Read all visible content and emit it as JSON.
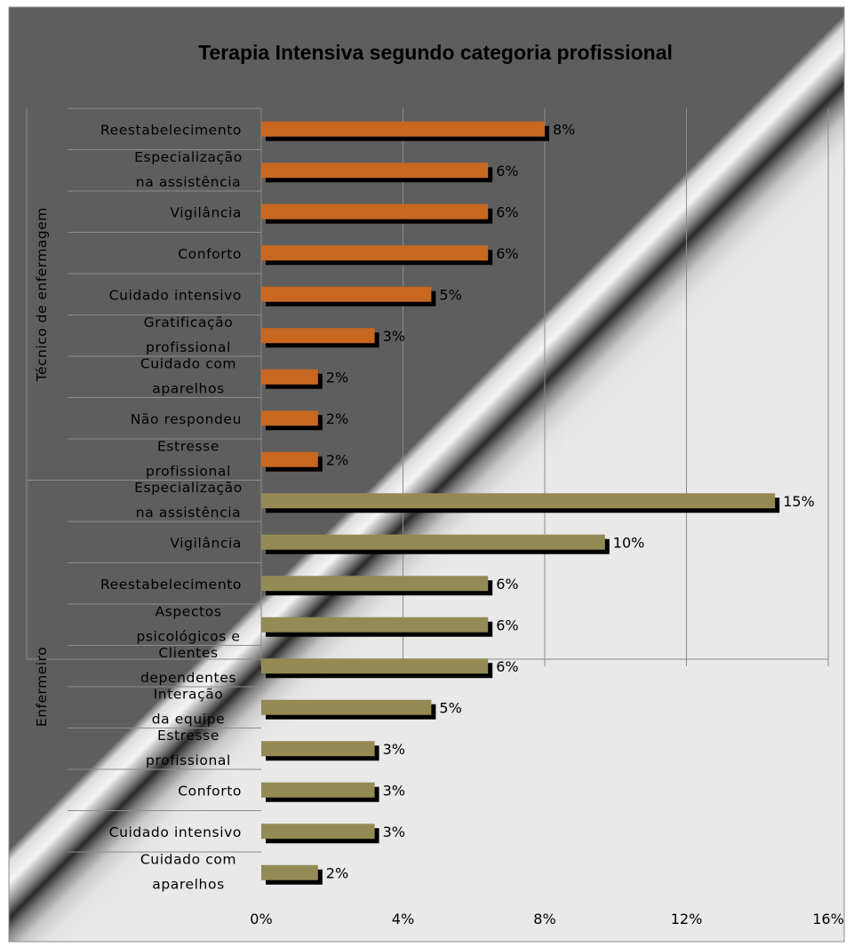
{
  "chart_data": {
    "type": "bar",
    "orientation": "horizontal",
    "title": "Terapia Intensiva segundo categoria profissional",
    "x_ticks": [
      "0%",
      "4%",
      "8%",
      "12%",
      "16%"
    ],
    "xlim": [
      0,
      16
    ],
    "grid": "vertical",
    "legend": "none",
    "groups": [
      {
        "name": "Técnico de enfermagem",
        "color": "#C8671F",
        "items": [
          {
            "label": "Reestabelecimento",
            "value": 8,
            "value_label": "8%"
          },
          {
            "label": "Especialização na assistência",
            "value": 6.4,
            "value_label": "6%"
          },
          {
            "label": "Vigilância",
            "value": 6.4,
            "value_label": "6%"
          },
          {
            "label": "Conforto",
            "value": 6.4,
            "value_label": "6%"
          },
          {
            "label": "Cuidado intensivo",
            "value": 4.8,
            "value_label": "5%"
          },
          {
            "label": "Gratificação profissional",
            "value": 3.2,
            "value_label": "3%"
          },
          {
            "label": "Cuidado com aparelhos",
            "value": 1.6,
            "value_label": "2%"
          },
          {
            "label": "Não respondeu",
            "value": 1.6,
            "value_label": "2%"
          },
          {
            "label": "Estresse profissional",
            "value": 1.6,
            "value_label": "2%"
          }
        ]
      },
      {
        "name": "Enfermeiro",
        "color": "#948A54",
        "items": [
          {
            "label": "Especialização na assistência",
            "value": 14.5,
            "value_label": "15%"
          },
          {
            "label": "Vigilância",
            "value": 9.7,
            "value_label": "10%"
          },
          {
            "label": "Reestabelecimento",
            "value": 6.4,
            "value_label": "6%"
          },
          {
            "label": "Aspectos psicológicos e",
            "value": 6.4,
            "value_label": "6%"
          },
          {
            "label": "Clientes dependentes",
            "value": 6.4,
            "value_label": "6%"
          },
          {
            "label": "Interação da equipe",
            "value": 4.8,
            "value_label": "5%"
          },
          {
            "label": "Estresse profissional",
            "value": 3.2,
            "value_label": "3%"
          },
          {
            "label": "Conforto",
            "value": 3.2,
            "value_label": "3%"
          },
          {
            "label": "Cuidado intensivo",
            "value": 3.2,
            "value_label": "3%"
          },
          {
            "label": "Cuidado com aparelhos",
            "value": 1.6,
            "value_label": "2%"
          }
        ]
      }
    ]
  }
}
